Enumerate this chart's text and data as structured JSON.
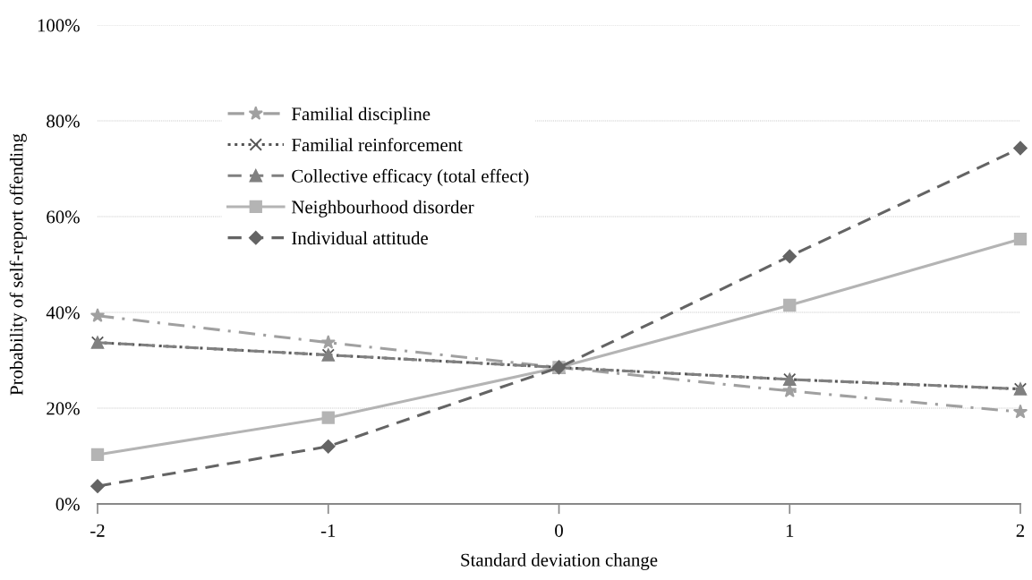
{
  "chart_data": {
    "type": "line",
    "xlabel": "Standard deviation change",
    "ylabel": "Probability of self-report offending",
    "x": [
      -2,
      -1,
      0,
      1,
      2
    ],
    "xlim": [
      -2,
      2
    ],
    "xticks": [
      -2,
      -1,
      0,
      1,
      2
    ],
    "ylim": [
      0,
      100
    ],
    "yticks": [
      {
        "value": 0,
        "label": "0%"
      },
      {
        "value": 20,
        "label": "20%"
      },
      {
        "value": 40,
        "label": "40%"
      },
      {
        "value": 60,
        "label": "60%"
      },
      {
        "value": 80,
        "label": "80%"
      },
      {
        "value": 100,
        "label": "100%"
      }
    ],
    "grid": "y",
    "legend": "top left",
    "series": [
      {
        "name": "Familial discipline",
        "color": "#a0a0a0",
        "marker": "star",
        "line_style": "dashdot",
        "values": [
          39.3,
          33.7,
          28.5,
          23.6,
          19.2
        ]
      },
      {
        "name": "Familial reinforcement",
        "color": "#555555",
        "marker": "cross",
        "line_style": "dotted",
        "values": [
          33.7,
          31.1,
          28.5,
          26.0,
          24.0
        ]
      },
      {
        "name": "Collective efficacy (total effect)",
        "color": "#808080",
        "marker": "triangle",
        "line_style": "dashed",
        "values": [
          33.7,
          31.1,
          28.5,
          26.0,
          24.0
        ]
      },
      {
        "name": "Neighbourhood disorder",
        "color": "#b4b4b4",
        "marker": "square",
        "line_style": "solid",
        "values": [
          10.3,
          18.0,
          28.5,
          41.5,
          55.3
        ]
      },
      {
        "name": "Individual attitude",
        "color": "#646464",
        "marker": "diamond",
        "line_style": "dashed",
        "values": [
          3.7,
          12.0,
          28.5,
          51.7,
          74.3
        ]
      }
    ]
  }
}
